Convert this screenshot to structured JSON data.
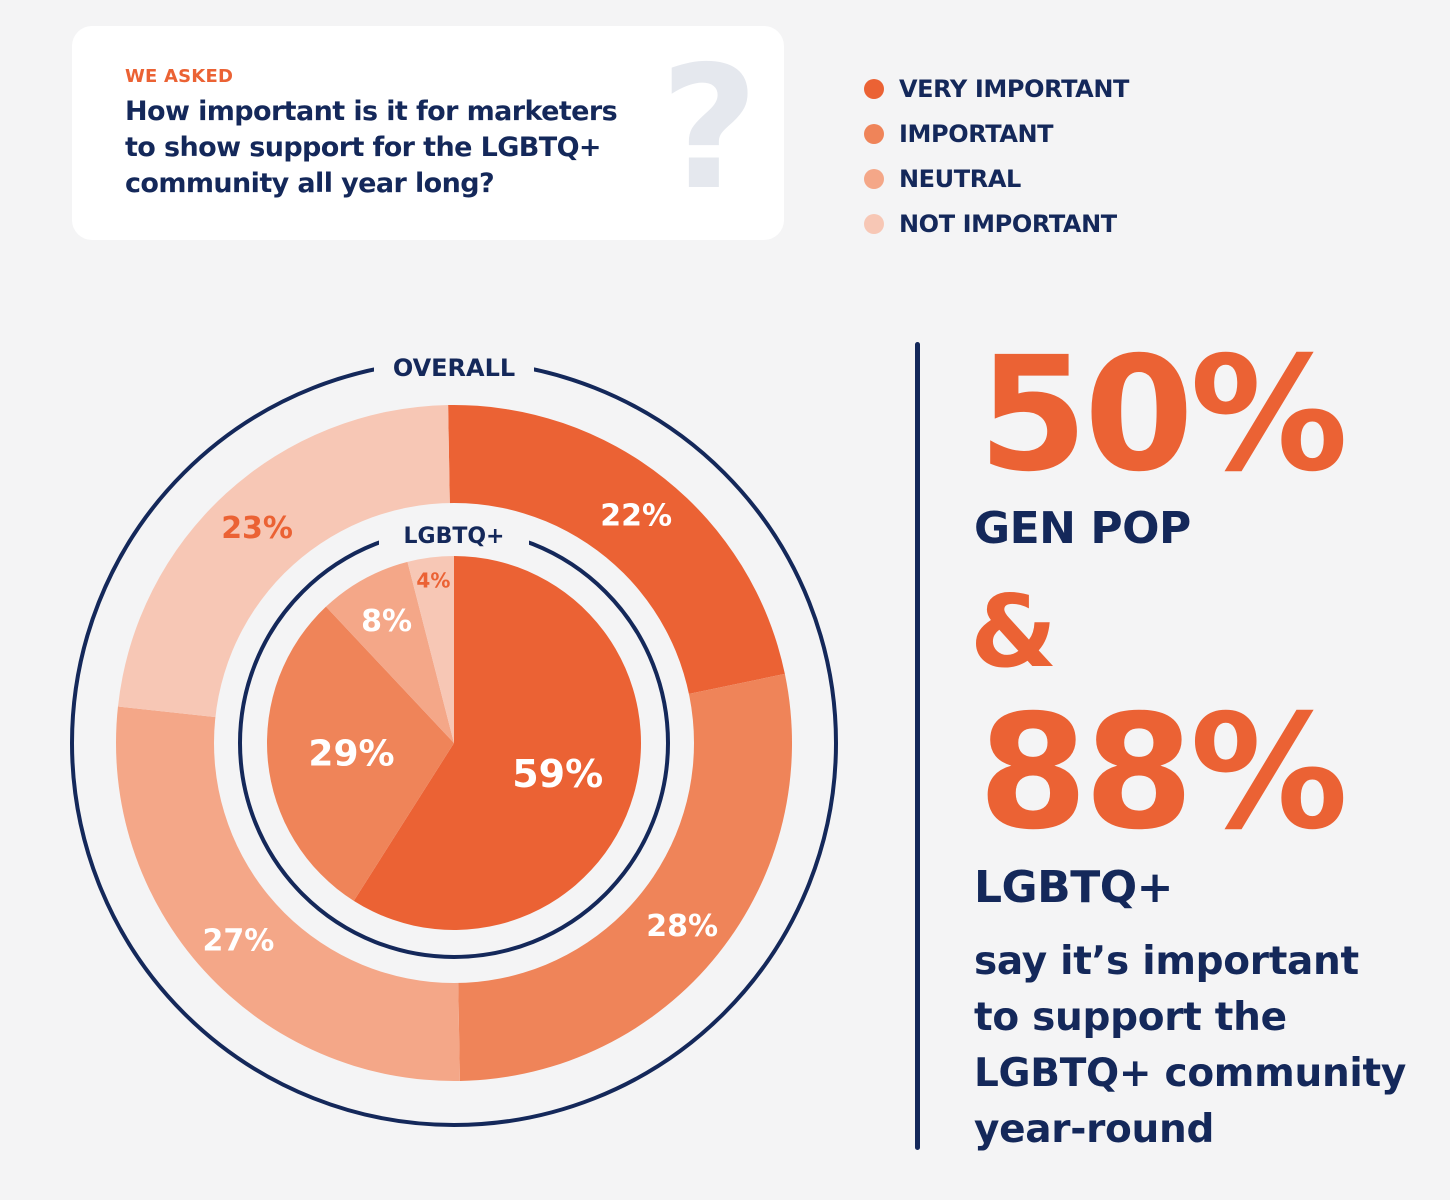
{
  "question": {
    "eyebrow": "WE ASKED",
    "text": "How important is it for marketers\nto show support for the LGBTQ+\ncommunity all year long?",
    "mark": "?"
  },
  "colors": {
    "navy": "#14285a",
    "accent": "#eb6234",
    "ring_gap": "#f4f4f5",
    "very_important": "#eb6234",
    "important": "#ef8459",
    "neutral": "#f4a788",
    "not_important": "#f7c7b5"
  },
  "legend": [
    {
      "label": "VERY IMPORTANT",
      "color": "#eb6234"
    },
    {
      "label": "IMPORTANT",
      "color": "#ef8459"
    },
    {
      "label": "NEUTRAL",
      "color": "#f4a788"
    },
    {
      "label": "NOT IMPORTANT",
      "color": "#f7c7b5"
    }
  ],
  "chart_data": {
    "type": "pie",
    "categories": [
      "VERY IMPORTANT",
      "IMPORTANT",
      "NEUTRAL",
      "NOT IMPORTANT"
    ],
    "series": [
      {
        "name": "OVERALL",
        "values": [
          22,
          28,
          27,
          23
        ],
        "labels": [
          "22%",
          "28%",
          "27%",
          "23%"
        ]
      },
      {
        "name": "LGBTQ+",
        "values": [
          59,
          29,
          8,
          4
        ],
        "labels": [
          "59%",
          "29%",
          "8%",
          "4%"
        ]
      }
    ]
  },
  "stats": {
    "stat1_value": "50%",
    "stat1_label": "GEN POP",
    "ampersand": "&",
    "stat2_value": "88%",
    "stat2_label": "LGBTQ+",
    "description": "say it’s important to support the LGBTQ+ community year-round"
  }
}
